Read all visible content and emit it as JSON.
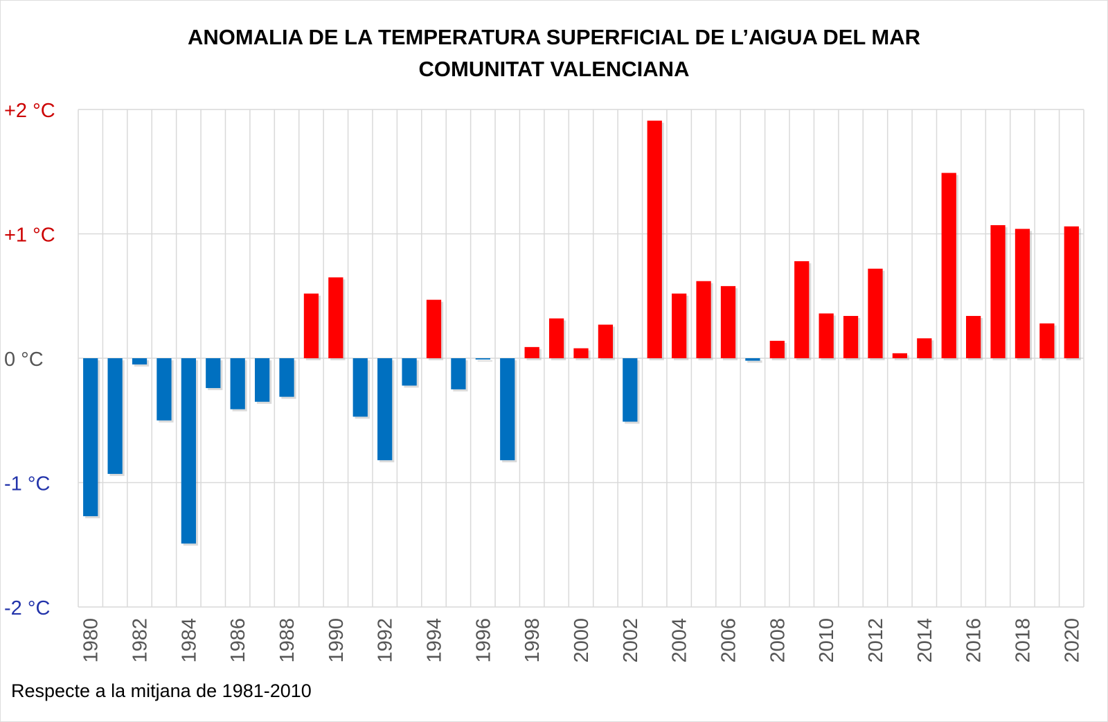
{
  "chart_data": {
    "type": "bar",
    "title": "ANOMALIA DE LA TEMPERATURA SUPERFICIAL DE L’AIGUA DEL MAR",
    "subtitle": "COMUNITAT VALENCIANA",
    "xlabel": "",
    "ylabel": "",
    "ylim": [
      -2,
      2
    ],
    "grid": true,
    "y_ticks": [
      {
        "value": 2,
        "label": "+2 °C",
        "color": "#cc0000"
      },
      {
        "value": 1,
        "label": "+1 °C",
        "color": "#cc0000"
      },
      {
        "value": 0,
        "label": "0 °C",
        "color": "#555555"
      },
      {
        "value": -1,
        "label": "-1 °C",
        "color": "#2233aa"
      },
      {
        "value": -2,
        "label": "-2 °C",
        "color": "#2233aa"
      }
    ],
    "positive_color": "#ff0000",
    "negative_color": "#0070c0",
    "categories": [
      1980,
      1981,
      1982,
      1983,
      1984,
      1985,
      1986,
      1987,
      1988,
      1989,
      1990,
      1991,
      1992,
      1993,
      1994,
      1995,
      1996,
      1997,
      1998,
      1999,
      2000,
      2001,
      2002,
      2003,
      2004,
      2005,
      2006,
      2007,
      2008,
      2009,
      2010,
      2011,
      2012,
      2013,
      2014,
      2015,
      2016,
      2017,
      2018,
      2019,
      2020
    ],
    "values": [
      -1.27,
      -0.93,
      -0.05,
      -0.5,
      -1.49,
      -0.24,
      -0.41,
      -0.35,
      -0.31,
      0.52,
      0.65,
      -0.47,
      -0.82,
      -0.22,
      0.47,
      -0.25,
      -0.01,
      -0.82,
      0.09,
      0.32,
      0.08,
      0.27,
      -0.51,
      1.91,
      0.52,
      0.62,
      0.58,
      -0.02,
      0.14,
      0.78,
      0.36,
      0.34,
      0.72,
      0.04,
      0.16,
      1.49,
      0.34,
      1.07,
      1.04,
      0.28,
      1.06
    ],
    "x_tick_labels": [
      "1980",
      "1982",
      "1984",
      "1986",
      "1988",
      "1990",
      "1992",
      "1994",
      "1996",
      "1998",
      "2000",
      "2002",
      "2004",
      "2006",
      "2008",
      "2010",
      "2012",
      "2014",
      "2016",
      "2018",
      "2020"
    ],
    "footnote": "Respecte a la mitjana de 1981-2010"
  }
}
